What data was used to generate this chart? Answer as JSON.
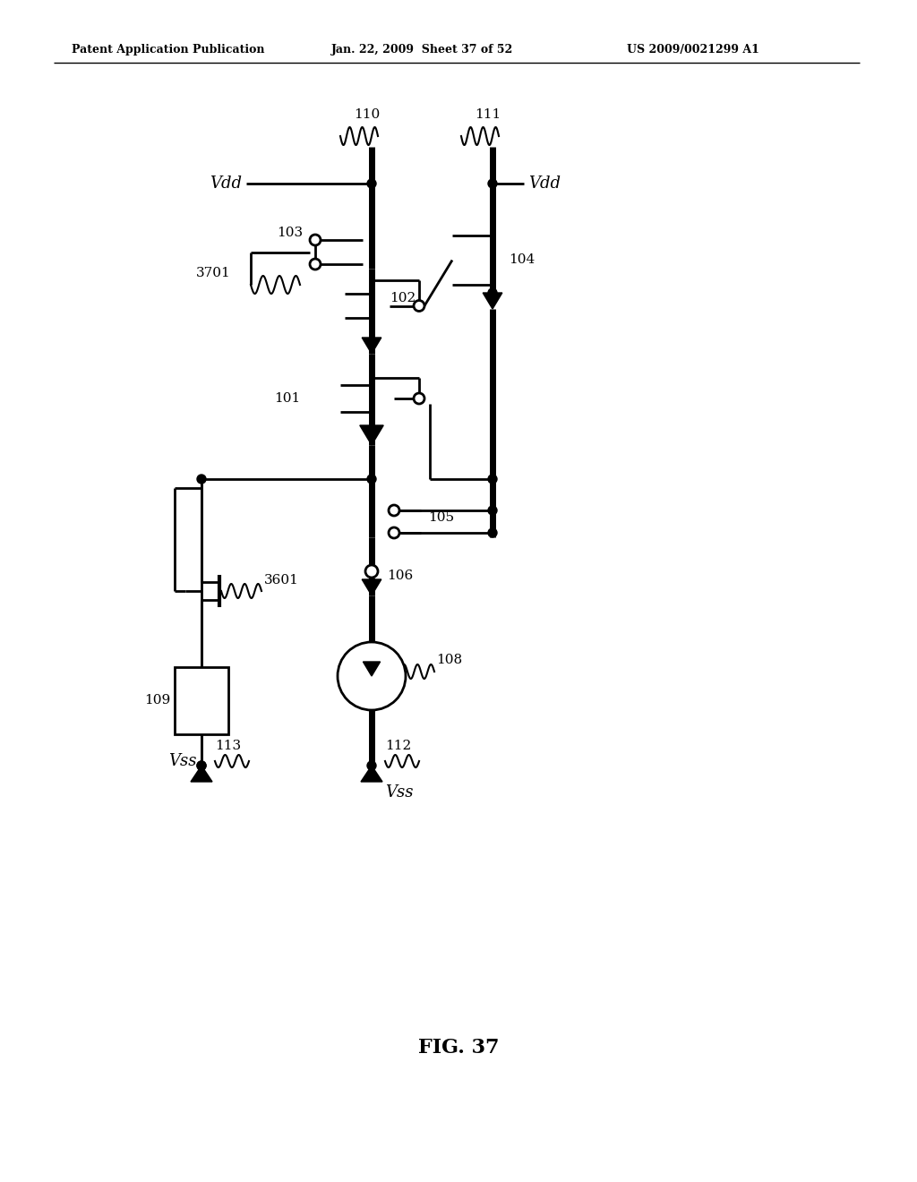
{
  "title": "FIG. 37",
  "header_left": "Patent Application Publication",
  "header_mid": "Jan. 22, 2009  Sheet 37 of 52",
  "header_right": "US 2009/0021299 A1",
  "bg_color": "#ffffff",
  "fg_color": "#000000"
}
